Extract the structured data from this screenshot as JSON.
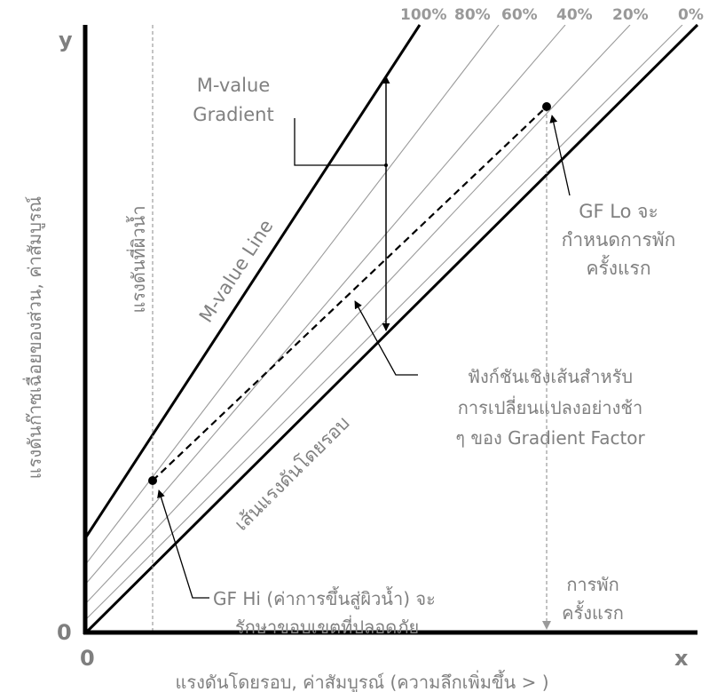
{
  "axes": {
    "y_label": "แรงดันก๊าซเฉื่อยของส่วน, ค่าสัมบูรณ์",
    "x_label": "แรงดันโดยรอบ, ค่าสัมบูรณ์ (ความลึกเพิ่มขึ้น > )",
    "x_letter": "x",
    "y_letter": "y",
    "x_zero": "0",
    "y_zero": "0"
  },
  "percent_labels": [
    "100%",
    "80%",
    "60%",
    "40%",
    "20%",
    "0%"
  ],
  "lines": {
    "m_value_line": "M-value Line",
    "ambient_line": "เส้นแรงดันโดยรอบ",
    "surface_pressure": "แรงดันที่ผิวน้ำ"
  },
  "annotations": {
    "m_value_gradient": [
      "M-value",
      "Gradient"
    ],
    "gf_lo": [
      "GF Lo จะ",
      "กำหนดการพัก",
      "ครั้งแรก"
    ],
    "linear_function": [
      "ฟังก์ชันเชิงเส้นสำหรับ",
      "การเปลี่ยนแปลงอย่างช้า",
      "ๆ ของ Gradient Factor"
    ],
    "gf_hi": [
      "GF Hi (ค่าการขึ้นสู่ผิวน้ำ) จะ",
      "รักษาขอบเขตที่ปลอดภัย"
    ],
    "first_stop": [
      "การพัก",
      "ครั้งแรก"
    ]
  },
  "colors": {
    "text": "#808080",
    "lines": "#000000",
    "thin_lines": "#9a9a9a",
    "background": "#ffffff"
  }
}
